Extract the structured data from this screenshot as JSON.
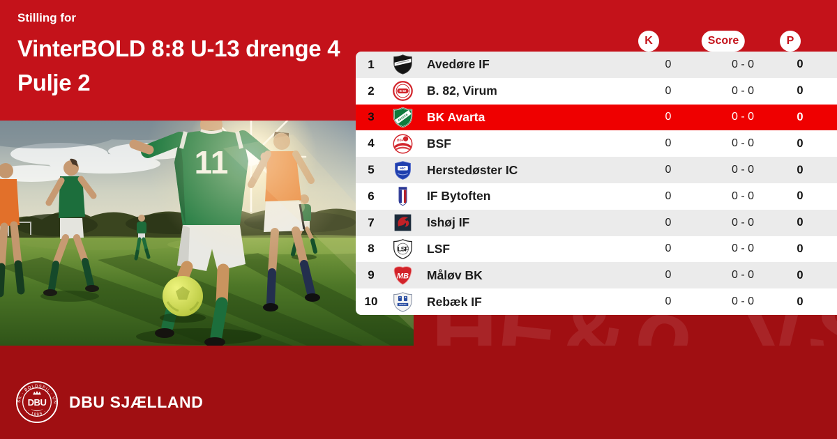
{
  "header": {
    "pretitle": "Stilling for",
    "title_line1": "VinterBOLD 8:8 U-13 drenge 4",
    "title_line2": "Pulje 2"
  },
  "table": {
    "columns": {
      "k": "K",
      "score": "Score",
      "p": "P"
    }
  },
  "standings": [
    {
      "rank": "1",
      "team": "Avedøre IF",
      "k": "0",
      "score": "0 - 0",
      "p": "0",
      "logo": "avedore-if-crest",
      "highlight": false
    },
    {
      "rank": "2",
      "team": "B. 82, Virum",
      "k": "0",
      "score": "0 - 0",
      "p": "0",
      "logo": "b82-virum-crest",
      "highlight": false
    },
    {
      "rank": "3",
      "team": "BK Avarta",
      "k": "0",
      "score": "0 - 0",
      "p": "0",
      "logo": "bk-avarta-crest",
      "highlight": true
    },
    {
      "rank": "4",
      "team": "BSF",
      "k": "0",
      "score": "0 - 0",
      "p": "0",
      "logo": "bsf-crest",
      "highlight": false
    },
    {
      "rank": "5",
      "team": "Herstedøster IC",
      "k": "0",
      "score": "0 - 0",
      "p": "0",
      "logo": "herstedoster-ic-crest",
      "highlight": false
    },
    {
      "rank": "6",
      "team": "IF Bytoften",
      "k": "0",
      "score": "0 - 0",
      "p": "0",
      "logo": "if-bytoften-crest",
      "highlight": false
    },
    {
      "rank": "7",
      "team": "Ishøj IF",
      "k": "0",
      "score": "0 - 0",
      "p": "0",
      "logo": "ishoj-if-crest",
      "highlight": false
    },
    {
      "rank": "8",
      "team": "LSF",
      "k": "0",
      "score": "0 - 0",
      "p": "0",
      "logo": "lsf-crest",
      "highlight": false
    },
    {
      "rank": "9",
      "team": "Måløv BK",
      "k": "0",
      "score": "0 - 0",
      "p": "0",
      "logo": "malov-bk-crest",
      "highlight": false
    },
    {
      "rank": "10",
      "team": "Rebæk IF",
      "k": "0",
      "score": "0 - 0",
      "p": "0",
      "logo": "rebaek-if-crest",
      "highlight": false
    }
  ],
  "footer": {
    "brand": "DBU SJÆLLAND",
    "emblem": {
      "ring_text": "DANSK · BOLDSPIL · UNION",
      "center": "DBU",
      "year": "· 1889 ·"
    }
  },
  "colors": {
    "background": "#C4121A",
    "background_dark": "#A00F12",
    "highlight_row": "#EF0000",
    "row": "#FFFFFF",
    "row_alt": "#EBEBEB",
    "pill_text": "#C4121A"
  }
}
